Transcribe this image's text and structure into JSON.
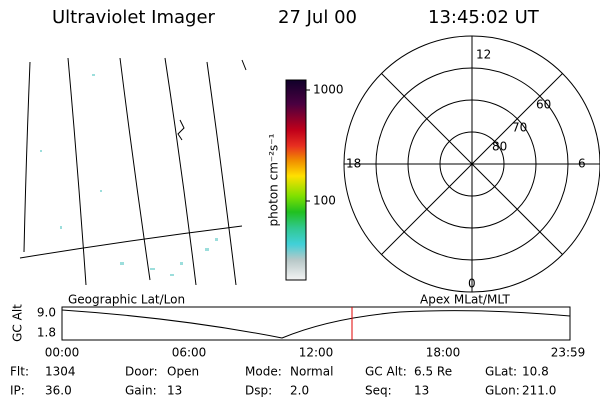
{
  "header": {
    "instrument": "Ultraviolet Imager",
    "date": "27 Jul 00",
    "time": "13:45:02 UT"
  },
  "colorbar": {
    "label": "photon cm⁻²s⁻¹",
    "ticks": [
      "1000",
      "100"
    ]
  },
  "polar": {
    "mlt_labels": [
      "12",
      "18",
      "6",
      "0"
    ],
    "lat_labels": [
      "60",
      "70",
      "80"
    ]
  },
  "orbit": {
    "left_title": "Geographic Lat/Lon",
    "right_title": "Apex MLat/MLT",
    "y_label": "GC Alt",
    "y_ticks": [
      "9.0",
      "1.8"
    ],
    "x_ticks": [
      "00:00",
      "06:00",
      "12:00",
      "18:00",
      "23:59"
    ]
  },
  "info": [
    [
      {
        "label": "Flt:",
        "value": "1304"
      },
      {
        "label": "IP:",
        "value": "36.0"
      }
    ],
    [
      {
        "label": "Door:",
        "value": "Open"
      },
      {
        "label": "Gain:",
        "value": "13"
      }
    ],
    [
      {
        "label": "Mode:",
        "value": "Normal"
      },
      {
        "label": "Dsp:",
        "value": "2.0"
      }
    ],
    [
      {
        "label": "GC Alt:",
        "value": "6.5 Re"
      },
      {
        "label": "Seq:",
        "value": "13"
      }
    ],
    [
      {
        "label": "GLat:",
        "value": "10.8"
      },
      {
        "label": "GLon:",
        "value": "211.0"
      }
    ]
  ]
}
